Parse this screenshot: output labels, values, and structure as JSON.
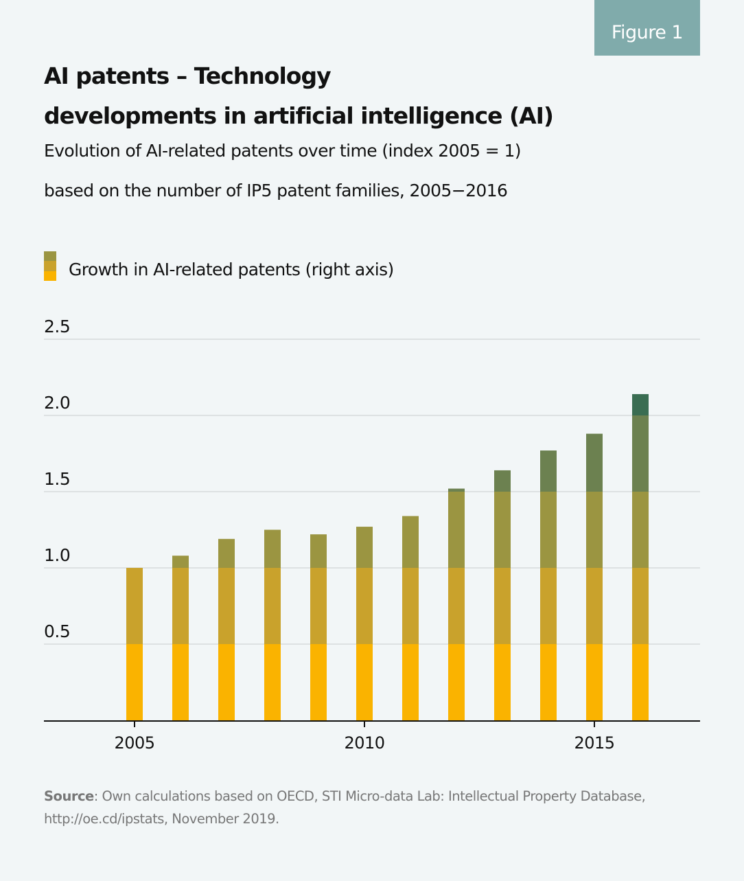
{
  "badge": "Figure 1",
  "title_line1": "AI patents – Technology",
  "title_line2": "developments in artificial intelligence (AI)",
  "subtitle_line1": "Evolution of AI-related patents over time (index 2005 = 1)",
  "subtitle_line2": "based on the number of IP5 patent families, 2005−2016",
  "legend": {
    "label": "Growth in AI-related patents (right axis)",
    "swatch_colors": [
      "#9b9541",
      "#c9a22c",
      "#fab300"
    ]
  },
  "source": {
    "prefix": "Source",
    "text": ": Own calculations based on OECD, STI Micro-data Lab: Intellectual Property Database, http://oe.cd/ipstats, November 2019."
  },
  "colors": {
    "band_0_0.5": "#fab300",
    "band_0.5_1.0": "#c9a22c",
    "band_1.0_1.5": "#9b9541",
    "band_1.5_2.0": "#6c8150",
    "band_2.0_2.5": "#3a6d52",
    "grid": "#c8cccc",
    "axis": "#111111",
    "badge_bg": "#80abab"
  },
  "chart_data": {
    "type": "bar",
    "title": "AI patents – Technology developments in artificial intelligence (AI)",
    "subtitle": "Evolution of AI-related patents over time (index 2005 = 1), based on the number of IP5 patent families, 2005−2016",
    "xlabel": "",
    "ylabel": "",
    "categories": [
      2005,
      2006,
      2007,
      2008,
      2009,
      2010,
      2011,
      2012,
      2013,
      2014,
      2015,
      2016
    ],
    "series": [
      {
        "name": "Growth in AI-related patents (right axis)",
        "values": [
          1.0,
          1.08,
          1.19,
          1.25,
          1.22,
          1.27,
          1.34,
          1.52,
          1.64,
          1.77,
          1.88,
          2.14
        ]
      }
    ],
    "ylim": [
      0,
      2.5
    ],
    "yticks": [
      0.5,
      1.0,
      1.5,
      2.0,
      2.5
    ],
    "ytick_labels": [
      "0.5",
      "1.0",
      "1.5",
      "2.0",
      "2.5"
    ],
    "xlim": [
      2003,
      2017.3
    ],
    "xticks": [
      2005,
      2010,
      2015
    ],
    "xtick_labels": [
      "2005",
      "2010",
      "2015"
    ],
    "color_bands": [
      0.5,
      1.0,
      1.5,
      2.0,
      2.5
    ],
    "grid": true,
    "legend_position": "top-left"
  }
}
